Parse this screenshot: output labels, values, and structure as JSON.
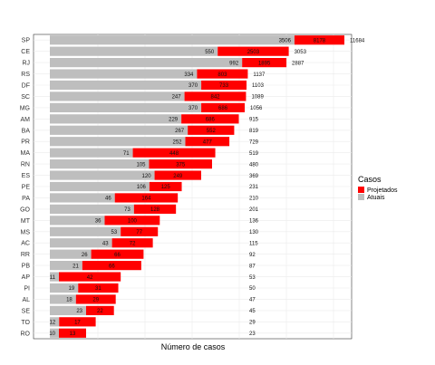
{
  "chart_data": {
    "type": "bar",
    "orientation": "horizontal",
    "stacked": true,
    "title": "",
    "xlabel": "Número de casos",
    "ylabel": "",
    "grid": true,
    "legend_position": "right",
    "legend_title": "Casos",
    "series": [
      {
        "name": "Projetados",
        "color": "#ff0000"
      },
      {
        "name": "Atuais",
        "color": "#bebebe"
      }
    ],
    "rows": [
      {
        "state": "SP",
        "atuais": "3506",
        "projetados": "8178",
        "total": "11684",
        "atuais_v": 3506,
        "total_v": 11684
      },
      {
        "state": "CE",
        "atuais": "550",
        "projetados": "2503",
        "total": "3053",
        "atuais_v": 550,
        "total_v": 3053
      },
      {
        "state": "RJ",
        "atuais": "992",
        "projetados": "1895",
        "total": "2887",
        "atuais_v": 992,
        "total_v": 2887
      },
      {
        "state": "RS",
        "atuais": "334",
        "projetados": "803",
        "total": "1137",
        "atuais_v": 334,
        "total_v": 1137
      },
      {
        "state": "DF",
        "atuais": "370",
        "projetados": "733",
        "total": "1103",
        "atuais_v": 370,
        "total_v": 1103
      },
      {
        "state": "SC",
        "atuais": "247",
        "projetados": "842",
        "total": "1089",
        "atuais_v": 247,
        "total_v": 1089
      },
      {
        "state": "MG",
        "atuais": "370",
        "projetados": "686",
        "total": "1056",
        "atuais_v": 370,
        "total_v": 1056
      },
      {
        "state": "AM",
        "atuais": "229",
        "projetados": "686",
        "total": "915",
        "atuais_v": 229,
        "total_v": 915
      },
      {
        "state": "BA",
        "atuais": "267",
        "projetados": "552",
        "total": "819",
        "atuais_v": 267,
        "total_v": 819
      },
      {
        "state": "PR",
        "atuais": "252",
        "projetados": "477",
        "total": "729",
        "atuais_v": 252,
        "total_v": 729
      },
      {
        "state": "MA",
        "atuais": "71",
        "projetados": "448",
        "total": "519",
        "atuais_v": 71,
        "total_v": 519
      },
      {
        "state": "RN",
        "atuais": "105",
        "projetados": "375",
        "total": "480",
        "atuais_v": 105,
        "total_v": 480
      },
      {
        "state": "ES",
        "atuais": "120",
        "projetados": "249",
        "total": "369",
        "atuais_v": 120,
        "total_v": 369
      },
      {
        "state": "PE",
        "atuais": "106",
        "projetados": "125",
        "total": "231",
        "atuais_v": 106,
        "total_v": 231
      },
      {
        "state": "PA",
        "atuais": "46",
        "projetados": "164",
        "total": "210",
        "atuais_v": 46,
        "total_v": 210
      },
      {
        "state": "GO",
        "atuais": "73",
        "projetados": "128",
        "total": "201",
        "atuais_v": 73,
        "total_v": 201
      },
      {
        "state": "MT",
        "atuais": "36",
        "projetados": "100",
        "total": "136",
        "atuais_v": 36,
        "total_v": 136
      },
      {
        "state": "MS",
        "atuais": "53",
        "projetados": "77",
        "total": "130",
        "atuais_v": 53,
        "total_v": 130
      },
      {
        "state": "AC",
        "atuais": "43",
        "projetados": "72",
        "total": "115",
        "atuais_v": 43,
        "total_v": 115
      },
      {
        "state": "RR",
        "atuais": "26",
        "projetados": "66",
        "total": "92",
        "atuais_v": 26,
        "total_v": 92
      },
      {
        "state": "PB",
        "atuais": "21",
        "projetados": "66",
        "total": "87",
        "atuais_v": 21,
        "total_v": 87
      },
      {
        "state": "AP",
        "atuais": "11",
        "projetados": "42",
        "total": "53",
        "atuais_v": 11,
        "total_v": 53
      },
      {
        "state": "PI",
        "atuais": "19",
        "projetados": "31",
        "total": "50",
        "atuais_v": 19,
        "total_v": 50
      },
      {
        "state": "AL",
        "atuais": "18",
        "projetados": "29",
        "total": "47",
        "atuais_v": 18,
        "total_v": 47
      },
      {
        "state": "SE",
        "atuais": "23",
        "projetados": "22",
        "total": "45",
        "atuais_v": 23,
        "total_v": 45
      },
      {
        "state": "TO",
        "atuais": "12",
        "projetados": "17",
        "total": "29",
        "atuais_v": 12,
        "total_v": 29
      },
      {
        "state": "RO",
        "atuais": "10",
        "projetados": "13",
        "total": "23",
        "atuais_v": 10,
        "total_v": 23
      }
    ]
  }
}
